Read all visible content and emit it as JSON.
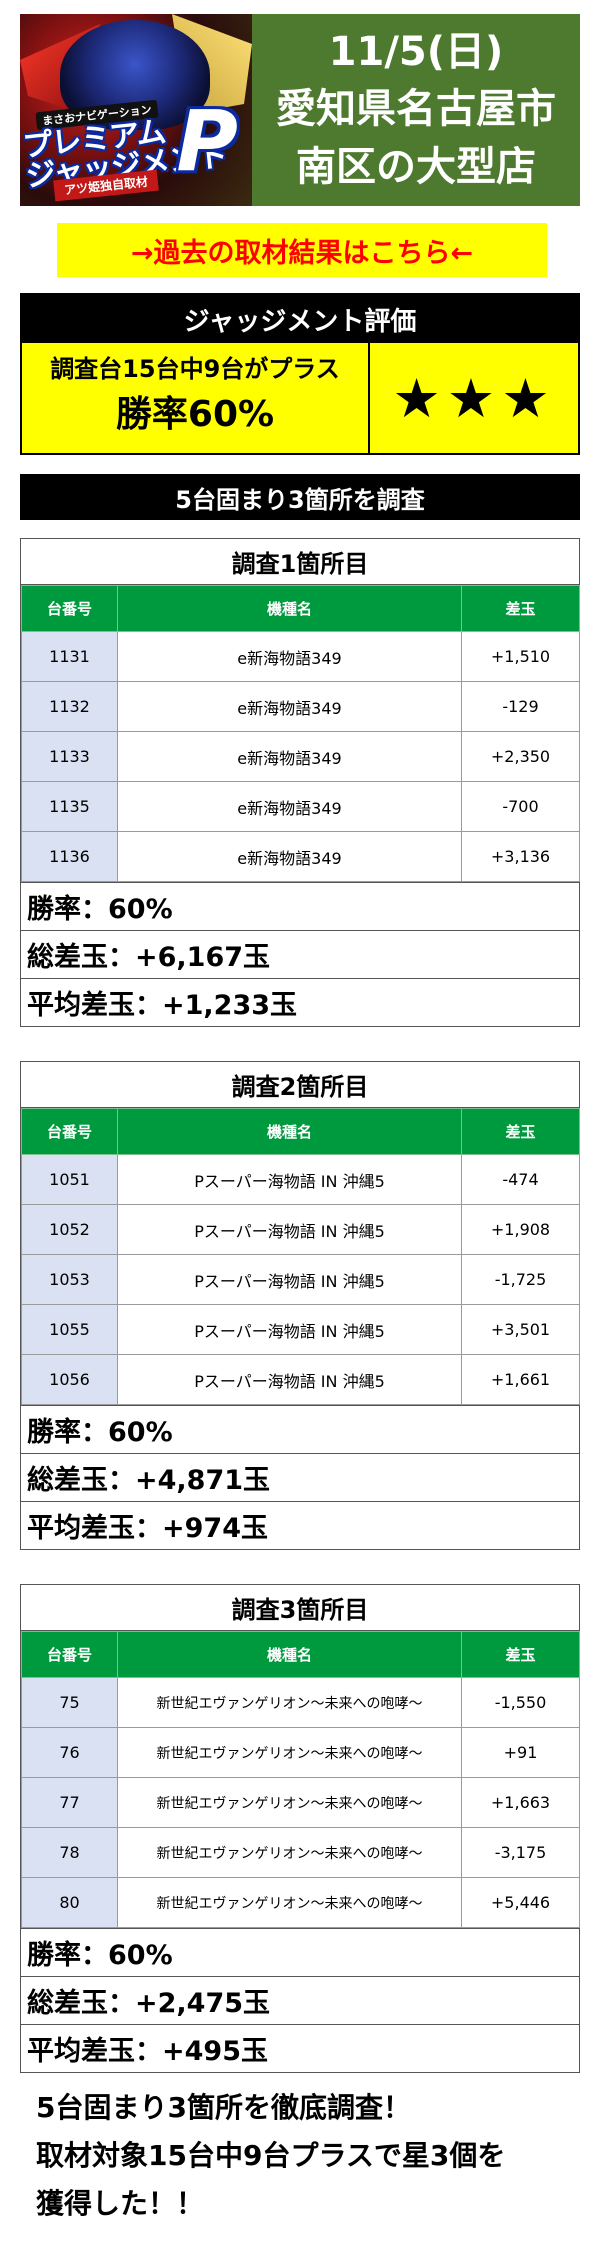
{
  "header": {
    "logo": {
      "tagline": "まさおナビゲーション",
      "title_line1": "プレミアム",
      "title_line2": "ジャッジメント",
      "title_mark": "P",
      "subtitle": "アツ姫独自取材"
    },
    "date": "11/5(日)",
    "location_line1": "愛知県名古屋市",
    "location_line2": "南区の大型店"
  },
  "past_results_link": "→過去の取材結果はこちら←",
  "judgment": {
    "title": "ジャッジメント評価",
    "description": "調査台15台中9台がプラス",
    "win_rate": "勝率60%",
    "stars": "★★★"
  },
  "section_title": "5台固まり3箇所を調査",
  "columns": {
    "number": "台番号",
    "machine": "機種名",
    "diff": "差玉"
  },
  "surveys": [
    {
      "title": "調査1箇所目",
      "rows": [
        {
          "number": "1131",
          "machine": "e新海物語349",
          "diff": "+1,510"
        },
        {
          "number": "1132",
          "machine": "e新海物語349",
          "diff": "-129"
        },
        {
          "number": "1133",
          "machine": "e新海物語349",
          "diff": "+2,350"
        },
        {
          "number": "1135",
          "machine": "e新海物語349",
          "diff": "-700"
        },
        {
          "number": "1136",
          "machine": "e新海物語349",
          "diff": "+3,136"
        }
      ],
      "win_rate": "勝率：60%",
      "total": "総差玉：+6,167玉",
      "average": "平均差玉：+1,233玉"
    },
    {
      "title": "調査2箇所目",
      "rows": [
        {
          "number": "1051",
          "machine": "Pスーパー海物語 IN 沖縄5",
          "diff": "-474"
        },
        {
          "number": "1052",
          "machine": "Pスーパー海物語 IN 沖縄5",
          "diff": "+1,908"
        },
        {
          "number": "1053",
          "machine": "Pスーパー海物語 IN 沖縄5",
          "diff": "-1,725"
        },
        {
          "number": "1055",
          "machine": "Pスーパー海物語 IN 沖縄5",
          "diff": "+3,501"
        },
        {
          "number": "1056",
          "machine": "Pスーパー海物語 IN 沖縄5",
          "diff": "+1,661"
        }
      ],
      "win_rate": "勝率：60%",
      "total": "総差玉：+4,871玉",
      "average": "平均差玉：+974玉"
    },
    {
      "title": "調査3箇所目",
      "rows": [
        {
          "number": "75",
          "machine": "新世紀エヴァンゲリオン～未来への咆哮～",
          "diff": "-1,550"
        },
        {
          "number": "76",
          "machine": "新世紀エヴァンゲリオン～未来への咆哮～",
          "diff": "+91"
        },
        {
          "number": "77",
          "machine": "新世紀エヴァンゲリオン～未来への咆哮～",
          "diff": "+1,663"
        },
        {
          "number": "78",
          "machine": "新世紀エヴァンゲリオン～未来への咆哮～",
          "diff": "-3,175"
        },
        {
          "number": "80",
          "machine": "新世紀エヴァンゲリオン～未来への咆哮～",
          "diff": "+5,446"
        }
      ],
      "win_rate": "勝率：60%",
      "total": "総差玉：+2,475玉",
      "average": "平均差玉：+495玉"
    }
  ],
  "summary": {
    "line1": "5台固まり3箇所を徹底調査！",
    "line2": "取材対象15台中9台プラスで星3個を",
    "line3": "獲得した！！"
  }
}
